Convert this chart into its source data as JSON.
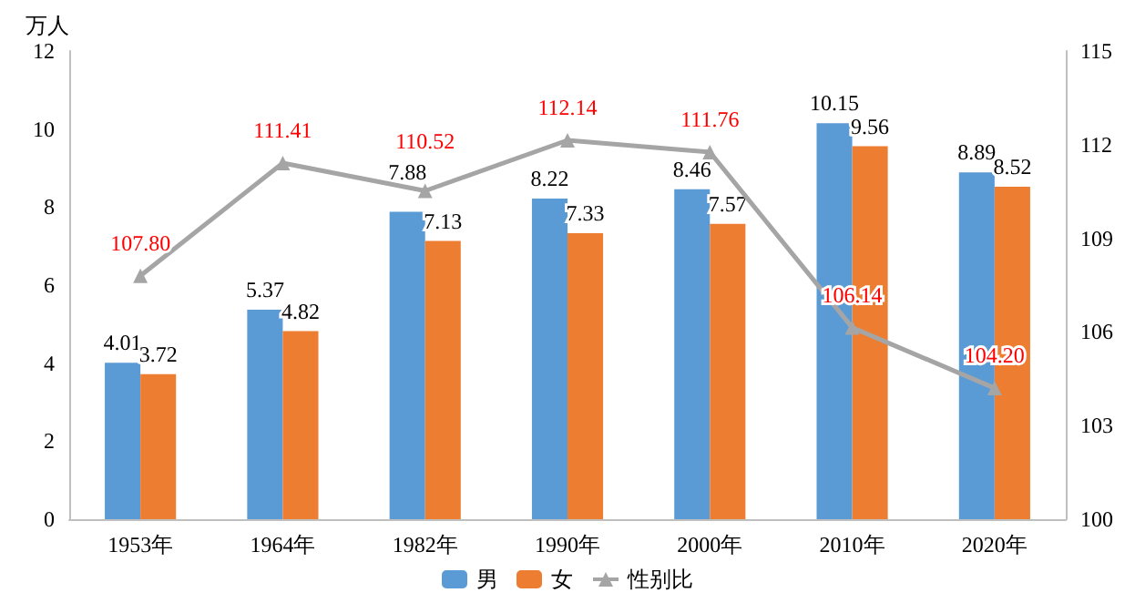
{
  "chart_data": {
    "type": "bar",
    "ylabel": "万人",
    "categories": [
      "1953年",
      "1964年",
      "1982年",
      "1990年",
      "2000年",
      "2010年",
      "2020年"
    ],
    "series": [
      {
        "name": "男",
        "color": "#5b9bd5",
        "values": [
          4.01,
          5.37,
          7.88,
          8.22,
          8.46,
          10.15,
          8.89
        ],
        "value_labels": [
          "4.01",
          "5.37",
          "7.88",
          "8.22",
          "8.46",
          "10.15",
          "8.89"
        ]
      },
      {
        "name": "女",
        "color": "#ed7d31",
        "values": [
          3.72,
          4.82,
          7.13,
          7.33,
          7.57,
          9.56,
          8.52
        ],
        "value_labels": [
          "3.72",
          "4.82",
          "7.13",
          "7.33",
          "7.57",
          "9.56",
          "8.52"
        ]
      },
      {
        "name": "性别比",
        "type": "line",
        "axis": "y2",
        "color": "#a5a5a5",
        "values": [
          107.8,
          111.41,
          110.52,
          112.14,
          111.76,
          106.14,
          104.2
        ],
        "value_labels": [
          "107.80",
          "111.41",
          "110.52",
          "112.14",
          "111.76",
          "106.14",
          "104.20"
        ]
      }
    ],
    "ylim": [
      0,
      12
    ],
    "yticks": [
      0,
      2,
      4,
      6,
      8,
      10,
      12
    ],
    "y2lim": [
      100,
      115
    ],
    "y2ticks": [
      100,
      103,
      106,
      109,
      112,
      115
    ],
    "data_labels": true,
    "legend": "bottom",
    "marker": "triangle"
  }
}
